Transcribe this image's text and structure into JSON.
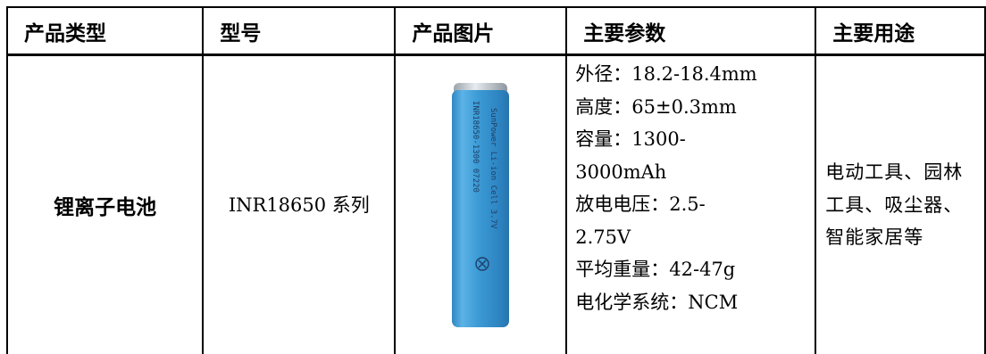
{
  "table": {
    "headers": [
      "产品类型",
      "型号",
      "产品图片",
      "主要参数",
      "主要用途"
    ],
    "row": {
      "product_type": "锂离子电池",
      "model": "INR18650 系列",
      "parameters": [
        "外径：18.2-18.4mm",
        "高度：65±0.3mm",
        "容量：1300-",
        "3000mAh",
        "放电电压：2.5-",
        "2.75V",
        "平均重量：42-47g",
        "电化学系统：NCM"
      ],
      "usage": "电动工具、园林工具、吸尘器、智能家居等"
    }
  },
  "battery_label": {
    "line1": "SunPower Li-ion Cell 3.7V",
    "line2": "INR18650-1300  07220",
    "body_color": "#3d9bd6",
    "cap_color": "#c9cfd4"
  }
}
